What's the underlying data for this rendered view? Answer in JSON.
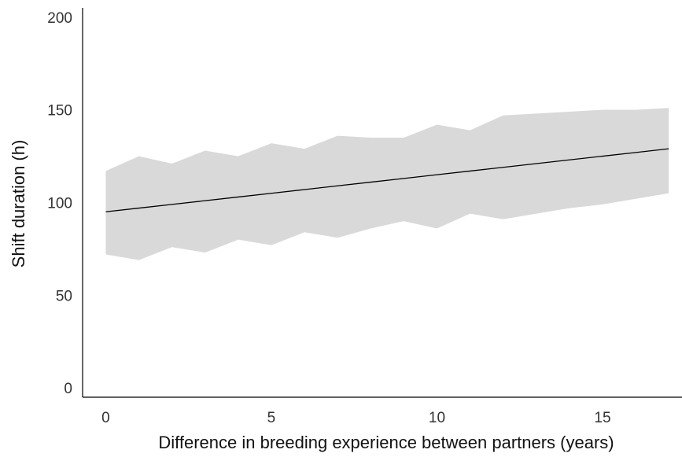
{
  "chart_data": {
    "type": "line",
    "title": "",
    "xlabel": "Difference in breeding experience between partners (years)",
    "ylabel": "Shift duration (h)",
    "xlim": [
      -0.7,
      17.4
    ],
    "ylim": [
      -5,
      205
    ],
    "x_ticks": [
      0,
      5,
      10,
      15
    ],
    "y_ticks": [
      0,
      50,
      100,
      150,
      200
    ],
    "grid": false,
    "legend": "none",
    "colors": {
      "band": "#d9d9d9",
      "line": "#000000",
      "axis": "#000000"
    },
    "series": [
      {
        "x": [
          0,
          1,
          2,
          3,
          4,
          5,
          6,
          7,
          8,
          9,
          10,
          11,
          12,
          13,
          14,
          15,
          16,
          17
        ],
        "values": [
          95,
          97,
          99,
          101,
          103,
          105,
          107,
          109,
          111,
          113,
          115,
          117,
          119,
          121,
          123,
          125,
          127,
          129
        ],
        "lower": [
          72,
          69,
          76,
          73,
          80,
          77,
          84,
          81,
          86,
          90,
          86,
          94,
          91,
          94,
          97,
          99,
          102,
          105
        ],
        "upper": [
          117,
          125,
          121,
          128,
          125,
          132,
          129,
          136,
          135,
          135,
          142,
          139,
          147,
          148,
          149,
          150,
          150,
          151
        ]
      }
    ]
  }
}
